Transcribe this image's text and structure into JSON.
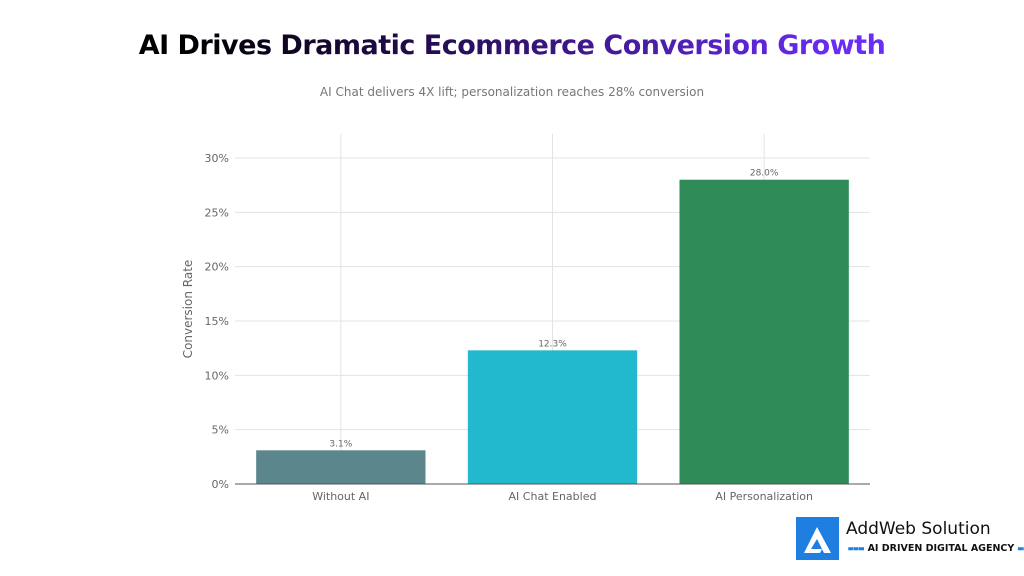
{
  "chart_data": {
    "type": "bar",
    "title": "AI Drives Dramatic Ecommerce Conversion Growth",
    "subtitle": "AI Chat delivers 4X lift; personalization reaches 28% conversion",
    "xlabel": "",
    "ylabel": "Conversion Rate",
    "ylim": [
      0,
      30
    ],
    "yticks": [
      "0%",
      "5%",
      "10%",
      "15%",
      "20%",
      "25%",
      "30%"
    ],
    "categories": [
      "Without AI",
      "AI Chat Enabled",
      "AI Personalization"
    ],
    "values": [
      3.1,
      12.3,
      28.0
    ],
    "data_labels": [
      "3.1%",
      "12.3%",
      "28.0%"
    ],
    "colors": [
      "#5b868c",
      "#22b8cd",
      "#2e8b57"
    ],
    "grid": true,
    "legend": "none"
  },
  "brand": {
    "name": "AddWeb Solution",
    "tagline": "AI DRIVEN DIGITAL AGENCY",
    "color": "#1e7fe0"
  }
}
